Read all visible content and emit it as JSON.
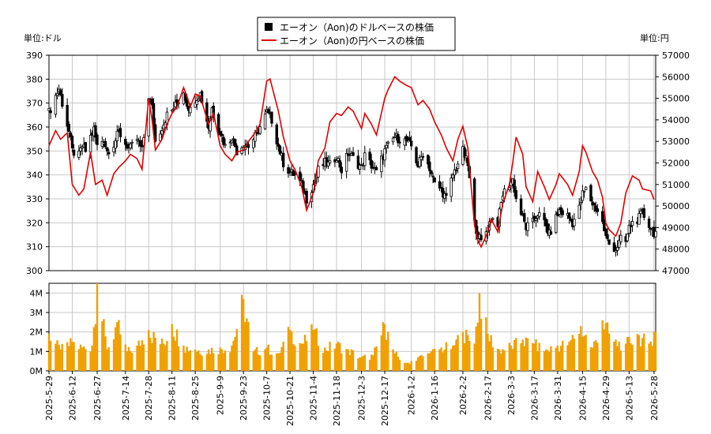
{
  "chart_data": {
    "type": "candlestick+line+bar",
    "legend": {
      "usd_series": "エーオン（Aon)のドルベースの株価",
      "jpy_series": "エーオン（Aon)の円ベースの株価",
      "placement": "top-center"
    },
    "left_unit_label": "単位:ドル",
    "right_unit_label": "単位:円",
    "grid": true,
    "price_axis_left": {
      "range": [
        300,
        390
      ],
      "ticks": [
        300,
        310,
        320,
        330,
        340,
        350,
        360,
        370,
        380,
        390
      ],
      "tick_labels": [
        "300",
        "310",
        "320",
        "330",
        "340",
        "350",
        "360",
        "370",
        "380",
        "390"
      ]
    },
    "price_axis_right": {
      "range": [
        47000,
        57000
      ],
      "ticks": [
        47000,
        48000,
        49000,
        50000,
        51000,
        52000,
        53000,
        54000,
        55000,
        56000,
        57000
      ],
      "tick_labels": [
        "47000",
        "48000",
        "49000",
        "50000",
        "51000",
        "52000",
        "53000",
        "54000",
        "55000",
        "56000",
        "57000"
      ]
    },
    "volume_axis": {
      "range": [
        0,
        4500000
      ],
      "ticks": [
        0,
        1000000,
        2000000,
        3000000,
        4000000
      ],
      "tick_labels": [
        "0M",
        "1M",
        "2M",
        "3M",
        "4M"
      ]
    },
    "x_axis": {
      "start": "2025-05-29",
      "end": "2026-05-29",
      "tick_labels": [
        "2025-5-29",
        "2025-6-12",
        "2025-6-27",
        "2025-7-14",
        "2025-7-28",
        "2025-8-11",
        "2025-8-25",
        "2025-9-9",
        "2025-9-23",
        "2025-10-7",
        "2025-10-21",
        "2025-11-4",
        "2025-11-18",
        "2025-12-3",
        "2025-12-17",
        "2026-1-2",
        "2026-1-16",
        "2026-2-2",
        "2026-2-17",
        "2026-3-3",
        "2026-3-17",
        "2026-3-31",
        "2026-4-15",
        "2026-4-29",
        "2026-5-13",
        "2026-5-28"
      ],
      "tick_dates": [
        "2025-05-29",
        "2025-06-12",
        "2025-06-27",
        "2025-07-14",
        "2025-07-28",
        "2025-08-11",
        "2025-08-25",
        "2025-09-09",
        "2025-09-23",
        "2025-10-07",
        "2025-10-21",
        "2025-11-04",
        "2025-11-18",
        "2025-12-03",
        "2025-12-17",
        "2026-01-02",
        "2026-01-16",
        "2026-02-02",
        "2026-02-17",
        "2026-03-03",
        "2026-03-17",
        "2026-03-31",
        "2026-04-15",
        "2026-04-29",
        "2026-05-13",
        "2026-05-28"
      ]
    },
    "usd_close_points": [
      [
        "2025-05-29",
        366
      ],
      [
        "2025-06-02",
        373
      ],
      [
        "2025-06-04",
        376
      ],
      [
        "2025-06-06",
        370
      ],
      [
        "2025-06-10",
        358
      ],
      [
        "2025-06-12",
        350
      ],
      [
        "2025-06-16",
        348
      ],
      [
        "2025-06-18",
        352
      ],
      [
        "2025-06-20",
        350
      ],
      [
        "2025-06-23",
        356
      ],
      [
        "2025-06-25",
        359
      ],
      [
        "2025-06-27",
        352
      ],
      [
        "2025-07-01",
        355
      ],
      [
        "2025-07-03",
        350
      ],
      [
        "2025-07-07",
        353
      ],
      [
        "2025-07-10",
        358
      ],
      [
        "2025-07-14",
        353
      ],
      [
        "2025-07-17",
        351
      ],
      [
        "2025-07-21",
        355
      ],
      [
        "2025-07-24",
        350
      ],
      [
        "2025-07-28",
        373
      ],
      [
        "2025-07-30",
        368
      ],
      [
        "2025-08-01",
        354
      ],
      [
        "2025-08-05",
        360
      ],
      [
        "2025-08-08",
        365
      ],
      [
        "2025-08-11",
        367
      ],
      [
        "2025-08-14",
        370
      ],
      [
        "2025-08-18",
        375
      ],
      [
        "2025-08-20",
        370
      ],
      [
        "2025-08-22",
        367
      ],
      [
        "2025-08-25",
        372
      ],
      [
        "2025-08-28",
        374
      ],
      [
        "2025-09-02",
        360
      ],
      [
        "2025-09-04",
        368
      ],
      [
        "2025-09-09",
        358
      ],
      [
        "2025-09-12",
        352
      ],
      [
        "2025-09-16",
        356
      ],
      [
        "2025-09-19",
        350
      ],
      [
        "2025-09-23",
        353
      ],
      [
        "2025-09-26",
        352
      ],
      [
        "2025-09-30",
        356
      ],
      [
        "2025-10-03",
        360
      ],
      [
        "2025-10-07",
        366
      ],
      [
        "2025-10-10",
        363
      ],
      [
        "2025-10-14",
        352
      ],
      [
        "2025-10-17",
        345
      ],
      [
        "2025-10-21",
        341
      ],
      [
        "2025-10-24",
        340
      ],
      [
        "2025-10-28",
        336
      ],
      [
        "2025-10-31",
        330
      ],
      [
        "2025-11-04",
        336
      ],
      [
        "2025-11-07",
        342
      ],
      [
        "2025-11-11",
        345
      ],
      [
        "2025-11-14",
        344
      ],
      [
        "2025-11-18",
        348
      ],
      [
        "2025-11-21",
        342
      ],
      [
        "2025-11-25",
        349
      ],
      [
        "2025-11-28",
        347
      ],
      [
        "2025-12-03",
        343
      ],
      [
        "2025-12-05",
        348
      ],
      [
        "2025-12-09",
        344
      ],
      [
        "2025-12-12",
        341
      ],
      [
        "2025-12-17",
        350
      ],
      [
        "2025-12-19",
        352
      ],
      [
        "2025-12-23",
        356
      ],
      [
        "2025-12-26",
        355
      ],
      [
        "2025-12-30",
        354
      ],
      [
        "2026-01-02",
        352
      ],
      [
        "2026-01-06",
        344
      ],
      [
        "2026-01-09",
        349
      ],
      [
        "2026-01-13",
        343
      ],
      [
        "2026-01-16",
        336
      ],
      [
        "2026-01-20",
        334
      ],
      [
        "2026-01-23",
        330
      ],
      [
        "2026-01-27",
        340
      ],
      [
        "2026-01-30",
        345
      ],
      [
        "2026-02-02",
        350
      ],
      [
        "2026-02-05",
        344
      ],
      [
        "2026-02-09",
        320
      ],
      [
        "2026-02-11",
        315
      ],
      [
        "2026-02-13",
        312
      ],
      [
        "2026-02-17",
        318
      ],
      [
        "2026-02-19",
        322
      ],
      [
        "2026-02-23",
        320
      ],
      [
        "2026-02-26",
        332
      ],
      [
        "2026-03-02",
        336
      ],
      [
        "2026-03-04",
        338
      ],
      [
        "2026-03-06",
        330
      ],
      [
        "2026-03-10",
        322
      ],
      [
        "2026-03-12",
        318
      ],
      [
        "2026-03-16",
        320
      ],
      [
        "2026-03-19",
        324
      ],
      [
        "2026-03-23",
        320
      ],
      [
        "2026-03-26",
        315
      ],
      [
        "2026-03-30",
        322
      ],
      [
        "2026-04-01",
        325
      ],
      [
        "2026-04-06",
        323
      ],
      [
        "2026-04-09",
        320
      ],
      [
        "2026-04-13",
        326
      ],
      [
        "2026-04-15",
        332
      ],
      [
        "2026-04-17",
        334
      ],
      [
        "2026-04-21",
        328
      ],
      [
        "2026-04-24",
        325
      ],
      [
        "2026-04-27",
        320
      ],
      [
        "2026-04-29",
        314
      ],
      [
        "2026-05-01",
        311
      ],
      [
        "2026-05-05",
        309
      ],
      [
        "2026-05-08",
        313
      ],
      [
        "2026-05-11",
        312
      ],
      [
        "2026-05-13",
        318
      ],
      [
        "2026-05-15",
        320
      ],
      [
        "2026-05-19",
        322
      ],
      [
        "2026-05-21",
        324
      ],
      [
        "2026-05-26",
        318
      ],
      [
        "2026-05-28",
        316
      ]
    ],
    "jpy_close_points": [
      [
        "2025-05-29",
        52800
      ],
      [
        "2025-06-02",
        53500
      ],
      [
        "2025-06-05",
        53100
      ],
      [
        "2025-06-09",
        53400
      ],
      [
        "2025-06-12",
        51000
      ],
      [
        "2025-06-16",
        50500
      ],
      [
        "2025-06-19",
        50800
      ],
      [
        "2025-06-23",
        52500
      ],
      [
        "2025-06-26",
        51000
      ],
      [
        "2025-06-30",
        51200
      ],
      [
        "2025-07-03",
        50500
      ],
      [
        "2025-07-07",
        51500
      ],
      [
        "2025-07-10",
        51800
      ],
      [
        "2025-07-14",
        52100
      ],
      [
        "2025-07-17",
        52400
      ],
      [
        "2025-07-21",
        52200
      ],
      [
        "2025-07-24",
        51700
      ],
      [
        "2025-07-28",
        55000
      ],
      [
        "2025-07-30",
        54000
      ],
      [
        "2025-08-01",
        52600
      ],
      [
        "2025-08-05",
        53100
      ],
      [
        "2025-08-08",
        53800
      ],
      [
        "2025-08-11",
        54300
      ],
      [
        "2025-08-14",
        54600
      ],
      [
        "2025-08-18",
        55500
      ],
      [
        "2025-08-20",
        55100
      ],
      [
        "2025-08-22",
        54600
      ],
      [
        "2025-08-25",
        55200
      ],
      [
        "2025-08-28",
        55100
      ],
      [
        "2025-09-02",
        53800
      ],
      [
        "2025-09-05",
        54300
      ],
      [
        "2025-09-09",
        52800
      ],
      [
        "2025-09-12",
        52400
      ],
      [
        "2025-09-16",
        52100
      ],
      [
        "2025-09-19",
        52500
      ],
      [
        "2025-09-23",
        52600
      ],
      [
        "2025-09-26",
        53000
      ],
      [
        "2025-09-30",
        53400
      ],
      [
        "2025-10-03",
        53800
      ],
      [
        "2025-10-07",
        55800
      ],
      [
        "2025-10-09",
        55900
      ],
      [
        "2025-10-14",
        54400
      ],
      [
        "2025-10-17",
        53200
      ],
      [
        "2025-10-21",
        52100
      ],
      [
        "2025-10-24",
        51700
      ],
      [
        "2025-10-28",
        50900
      ],
      [
        "2025-10-31",
        49800
      ],
      [
        "2025-11-04",
        50600
      ],
      [
        "2025-11-07",
        52100
      ],
      [
        "2025-11-11",
        52700
      ],
      [
        "2025-11-14",
        53900
      ],
      [
        "2025-11-18",
        54300
      ],
      [
        "2025-11-21",
        54200
      ],
      [
        "2025-11-25",
        54600
      ],
      [
        "2025-11-28",
        54400
      ],
      [
        "2025-12-03",
        53600
      ],
      [
        "2025-12-05",
        54300
      ],
      [
        "2025-12-09",
        53800
      ],
      [
        "2025-12-12",
        53300
      ],
      [
        "2025-12-17",
        55000
      ],
      [
        "2025-12-19",
        55400
      ],
      [
        "2025-12-23",
        56000
      ],
      [
        "2025-12-26",
        55800
      ],
      [
        "2025-12-30",
        55600
      ],
      [
        "2026-01-02",
        55500
      ],
      [
        "2026-01-06",
        54700
      ],
      [
        "2026-01-09",
        54900
      ],
      [
        "2026-01-13",
        54500
      ],
      [
        "2026-01-16",
        53900
      ],
      [
        "2026-01-20",
        53300
      ],
      [
        "2026-01-23",
        52700
      ],
      [
        "2026-01-27",
        52100
      ],
      [
        "2026-01-30",
        53100
      ],
      [
        "2026-02-02",
        53700
      ],
      [
        "2026-02-05",
        52700
      ],
      [
        "2026-02-09",
        49100
      ],
      [
        "2026-02-11",
        48400
      ],
      [
        "2026-02-13",
        48100
      ],
      [
        "2026-02-17",
        48800
      ],
      [
        "2026-02-19",
        49400
      ],
      [
        "2026-02-23",
        48800
      ],
      [
        "2026-02-26",
        50100
      ],
      [
        "2026-03-02",
        51000
      ],
      [
        "2026-03-04",
        52000
      ],
      [
        "2026-03-06",
        53200
      ],
      [
        "2026-03-10",
        52400
      ],
      [
        "2026-03-12",
        50900
      ],
      [
        "2026-03-16",
        50200
      ],
      [
        "2026-03-19",
        51600
      ],
      [
        "2026-03-23",
        50900
      ],
      [
        "2026-03-26",
        50300
      ],
      [
        "2026-03-30",
        51000
      ],
      [
        "2026-04-01",
        51500
      ],
      [
        "2026-04-06",
        51000
      ],
      [
        "2026-04-09",
        50500
      ],
      [
        "2026-04-13",
        51600
      ],
      [
        "2026-04-15",
        52800
      ],
      [
        "2026-04-17",
        52500
      ],
      [
        "2026-04-21",
        51600
      ],
      [
        "2026-04-24",
        51200
      ],
      [
        "2026-04-27",
        50400
      ],
      [
        "2026-04-29",
        49200
      ],
      [
        "2026-05-01",
        48900
      ],
      [
        "2026-05-05",
        48600
      ],
      [
        "2026-05-08",
        49200
      ],
      [
        "2026-05-11",
        50600
      ],
      [
        "2026-05-13",
        51000
      ],
      [
        "2026-05-15",
        51400
      ],
      [
        "2026-05-19",
        51200
      ],
      [
        "2026-05-21",
        50800
      ],
      [
        "2026-05-26",
        50700
      ],
      [
        "2026-05-28",
        50300
      ]
    ],
    "volume_points": [
      [
        "2025-05-29",
        1900000
      ],
      [
        "2025-06-05",
        1100000
      ],
      [
        "2025-06-12",
        1500000
      ],
      [
        "2025-06-18",
        1200000
      ],
      [
        "2025-06-24",
        1300000
      ],
      [
        "2025-06-27",
        4500000
      ],
      [
        "2025-07-03",
        1100000
      ],
      [
        "2025-07-09",
        2500000
      ],
      [
        "2025-07-15",
        1000000
      ],
      [
        "2025-07-21",
        1300000
      ],
      [
        "2025-07-28",
        2100000
      ],
      [
        "2025-08-01",
        1700000
      ],
      [
        "2025-08-06",
        1400000
      ],
      [
        "2025-08-11",
        2400000
      ],
      [
        "2025-08-18",
        1300000
      ],
      [
        "2025-08-25",
        1100000
      ],
      [
        "2025-09-02",
        1100000
      ],
      [
        "2025-09-09",
        1200000
      ],
      [
        "2025-09-16",
        1300000
      ],
      [
        "2025-09-23",
        3700000
      ],
      [
        "2025-09-29",
        1000000
      ],
      [
        "2025-10-07",
        1200000
      ],
      [
        "2025-10-14",
        900000
      ],
      [
        "2025-10-21",
        2100000
      ],
      [
        "2025-10-28",
        1400000
      ],
      [
        "2025-11-04",
        2100000
      ],
      [
        "2025-11-11",
        1200000
      ],
      [
        "2025-11-18",
        1400000
      ],
      [
        "2025-11-25",
        1100000
      ],
      [
        "2025-12-03",
        700000
      ],
      [
        "2025-12-10",
        800000
      ],
      [
        "2025-12-17",
        2400000
      ],
      [
        "2025-12-23",
        900000
      ],
      [
        "2025-12-30",
        400000
      ],
      [
        "2026-01-06",
        700000
      ],
      [
        "2026-01-13",
        900000
      ],
      [
        "2026-01-20",
        1200000
      ],
      [
        "2026-01-27",
        1300000
      ],
      [
        "2026-02-02",
        2000000
      ],
      [
        "2026-02-09",
        1400000
      ],
      [
        "2026-02-12",
        4000000
      ],
      [
        "2026-02-17",
        1900000
      ],
      [
        "2026-02-24",
        1100000
      ],
      [
        "2026-03-03",
        1300000
      ],
      [
        "2026-03-10",
        1600000
      ],
      [
        "2026-03-17",
        1400000
      ],
      [
        "2026-03-24",
        1100000
      ],
      [
        "2026-03-31",
        1300000
      ],
      [
        "2026-04-07",
        1500000
      ],
      [
        "2026-04-14",
        2300000
      ],
      [
        "2026-04-21",
        1200000
      ],
      [
        "2026-04-27",
        2600000
      ],
      [
        "2026-05-04",
        1500000
      ],
      [
        "2026-05-11",
        1400000
      ],
      [
        "2026-05-18",
        1900000
      ],
      [
        "2026-05-25",
        1400000
      ],
      [
        "2026-05-28",
        2000000
      ]
    ]
  }
}
